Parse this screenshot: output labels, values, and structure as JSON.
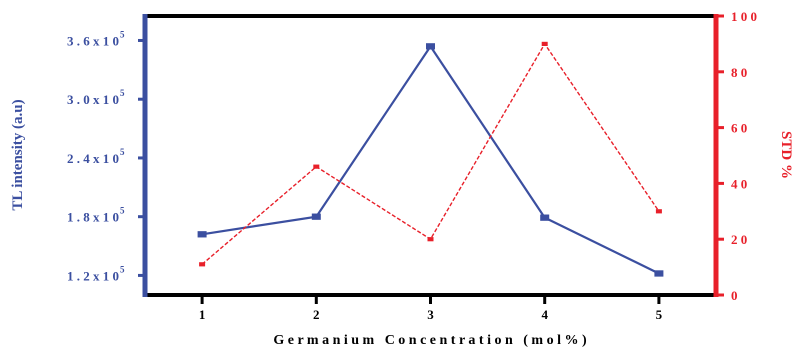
{
  "chart_data": {
    "type": "line",
    "xlabel": "G e r m a n i u m   C o n c e n t r a t i o n   ( m o l % )",
    "ylabel_left": "TL intensity (a.u)",
    "ylabel_right": "STD %",
    "x": [
      1,
      2,
      3,
      4,
      5
    ],
    "x_tick_labels": [
      "1",
      "2",
      "3",
      "4",
      "5"
    ],
    "xlim": [
      0.5,
      5.5
    ],
    "ylim_left": [
      100000,
      385000
    ],
    "ylim_right": [
      0,
      100
    ],
    "left_ticks": [
      {
        "value": 120000,
        "label": "1 . 2 x 1 0",
        "exp": "5"
      },
      {
        "value": 180000,
        "label": "1 . 8 x 1 0",
        "exp": "5"
      },
      {
        "value": 240000,
        "label": "2 . 4 x 1 0",
        "exp": "5"
      },
      {
        "value": 300000,
        "label": "3 . 0 x 1 0",
        "exp": "5"
      },
      {
        "value": 360000,
        "label": "3 . 6 x 1 0",
        "exp": "5"
      }
    ],
    "right_ticks": [
      {
        "value": 0,
        "label": "0"
      },
      {
        "value": 20,
        "label": "2 0"
      },
      {
        "value": 40,
        "label": "4 0"
      },
      {
        "value": 60,
        "label": "6 0"
      },
      {
        "value": 80,
        "label": "8 0"
      },
      {
        "value": 100,
        "label": "1 0 0"
      }
    ],
    "series": [
      {
        "axis": "left",
        "values": [
          162000,
          180000,
          354000,
          179000,
          122000
        ],
        "color": "#3b4fa0",
        "style": "solid",
        "marker": "square"
      },
      {
        "axis": "right",
        "values": [
          11,
          46,
          20,
          90,
          30
        ],
        "color": "#e8202a",
        "style": "dashed",
        "marker": "square"
      }
    ],
    "colors": {
      "axis_frame": "#000000",
      "left_axis": "#3b4fa0",
      "right_axis": "#e8202a"
    }
  }
}
